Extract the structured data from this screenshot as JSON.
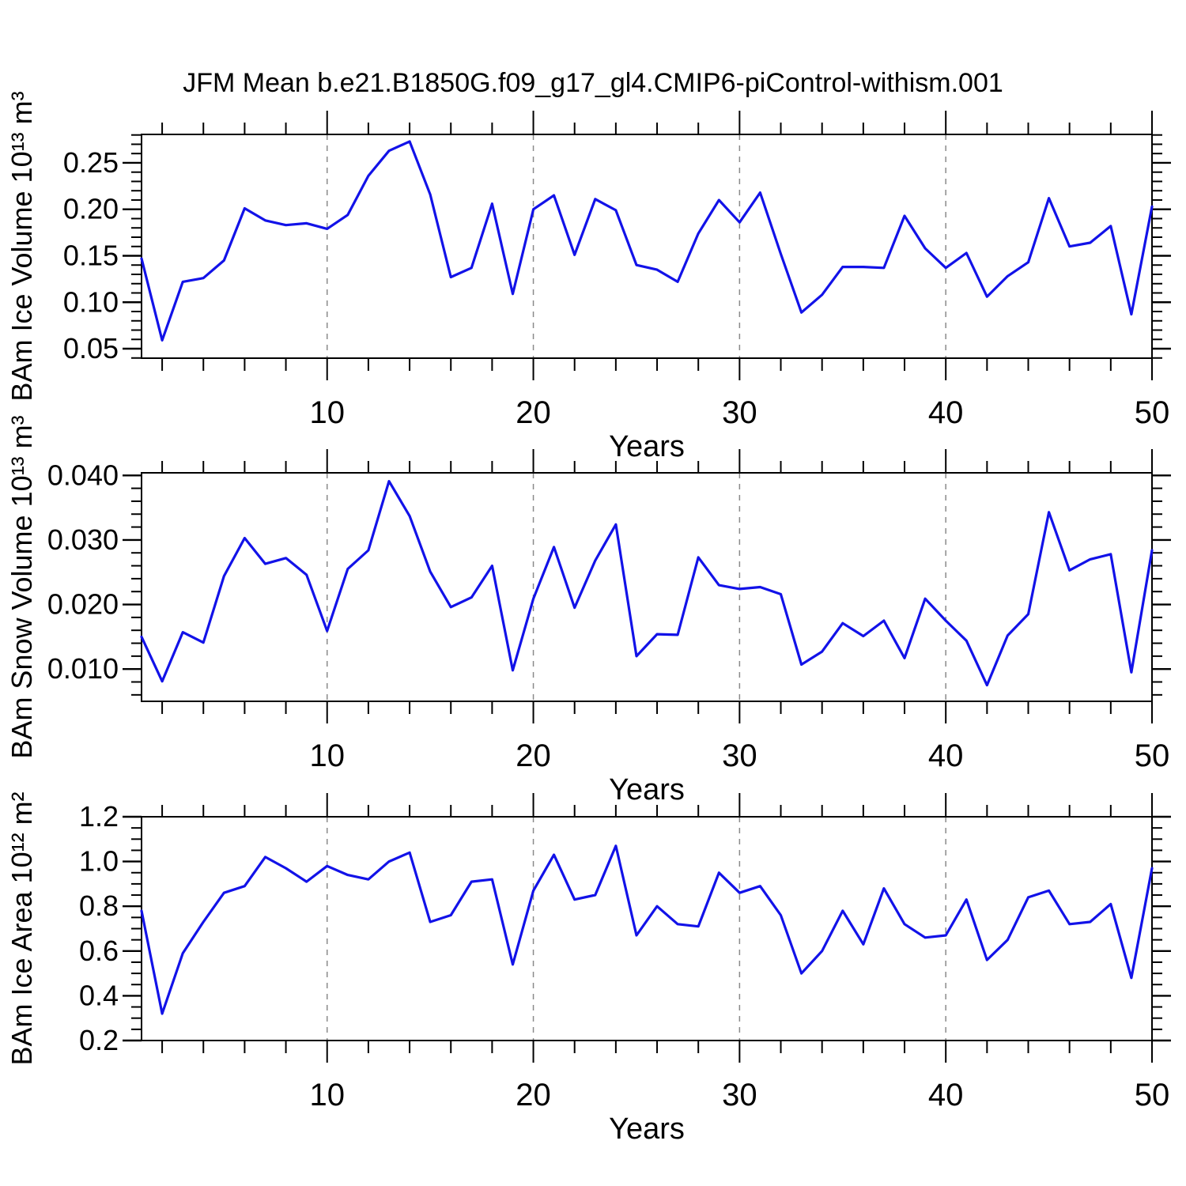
{
  "title": "JFM Mean b.e21.B1850G.f09_g17_gl4.CMIP6-piControl-withism.001",
  "colors": {
    "line": "#1212e8",
    "grid": "#8a8a8a",
    "axis": "#000000",
    "text": "#000000"
  },
  "chart_data": [
    {
      "type": "line",
      "ylabel": "BAm Ice Volume 10¹³ m³",
      "xlabel": "Years",
      "xlim": [
        1,
        50
      ],
      "ylim": [
        0.0398,
        0.2806
      ],
      "x_major_ticks": [
        {
          "v": 10,
          "label": "10"
        },
        {
          "v": 20,
          "label": "20"
        },
        {
          "v": 30,
          "label": "30"
        },
        {
          "v": 40,
          "label": "40"
        },
        {
          "v": 50,
          "label": "50"
        }
      ],
      "x_minor_step": 2,
      "gridlines_x": [
        10,
        20,
        30,
        40
      ],
      "y_major_ticks": [
        {
          "v": 0.05,
          "label": "0.05"
        },
        {
          "v": 0.1,
          "label": "0.10"
        },
        {
          "v": 0.15,
          "label": "0.15"
        },
        {
          "v": 0.2,
          "label": "0.20"
        },
        {
          "v": 0.25,
          "label": "0.25"
        }
      ],
      "y_minor_step": 0.01,
      "x": [
        1,
        2,
        3,
        4,
        5,
        6,
        7,
        8,
        9,
        10,
        11,
        12,
        13,
        14,
        15,
        16,
        17,
        18,
        19,
        20,
        21,
        22,
        23,
        24,
        25,
        26,
        27,
        28,
        29,
        30,
        31,
        32,
        33,
        34,
        35,
        36,
        37,
        38,
        39,
        40,
        41,
        42,
        43,
        44,
        45,
        46,
        47,
        48,
        49,
        50
      ],
      "values": [
        0.147,
        0.059,
        0.122,
        0.126,
        0.145,
        0.201,
        0.188,
        0.183,
        0.185,
        0.179,
        0.194,
        0.236,
        0.263,
        0.273,
        0.216,
        0.127,
        0.137,
        0.206,
        0.109,
        0.2,
        0.215,
        0.151,
        0.211,
        0.199,
        0.14,
        0.135,
        0.122,
        0.174,
        0.21,
        0.186,
        0.218,
        0.152,
        0.089,
        0.108,
        0.138,
        0.138,
        0.137,
        0.193,
        0.158,
        0.137,
        0.153,
        0.106,
        0.128,
        0.143,
        0.212,
        0.16,
        0.164,
        0.182,
        0.087,
        0.203
      ]
    },
    {
      "type": "line",
      "ylabel": "BAm Snow Volume 10¹³ m³",
      "xlabel": "Years",
      "xlim": [
        1,
        50
      ],
      "ylim": [
        0.005,
        0.0404
      ],
      "x_major_ticks": [
        {
          "v": 10,
          "label": "10"
        },
        {
          "v": 20,
          "label": "20"
        },
        {
          "v": 30,
          "label": "30"
        },
        {
          "v": 40,
          "label": "40"
        },
        {
          "v": 50,
          "label": "50"
        }
      ],
      "x_minor_step": 2,
      "gridlines_x": [
        10,
        20,
        30,
        40
      ],
      "y_major_ticks": [
        {
          "v": 0.01,
          "label": "0.010"
        },
        {
          "v": 0.02,
          "label": "0.020"
        },
        {
          "v": 0.03,
          "label": "0.030"
        },
        {
          "v": 0.04,
          "label": "0.040"
        }
      ],
      "y_minor_step": 0.002,
      "x": [
        1,
        2,
        3,
        4,
        5,
        6,
        7,
        8,
        9,
        10,
        11,
        12,
        13,
        14,
        15,
        16,
        17,
        18,
        19,
        20,
        21,
        22,
        23,
        24,
        25,
        26,
        27,
        28,
        29,
        30,
        31,
        32,
        33,
        34,
        35,
        36,
        37,
        38,
        39,
        40,
        41,
        42,
        43,
        44,
        45,
        46,
        47,
        48,
        49,
        50
      ],
      "values": [
        0.015,
        0.0081,
        0.0157,
        0.0141,
        0.0244,
        0.0303,
        0.0263,
        0.0272,
        0.0246,
        0.0159,
        0.0255,
        0.0284,
        0.0391,
        0.0337,
        0.0251,
        0.0196,
        0.0211,
        0.026,
        0.0098,
        0.0209,
        0.0289,
        0.0195,
        0.0268,
        0.0324,
        0.012,
        0.0154,
        0.0153,
        0.0273,
        0.023,
        0.0224,
        0.0227,
        0.0216,
        0.0107,
        0.0127,
        0.0171,
        0.0151,
        0.0175,
        0.0117,
        0.0209,
        0.0175,
        0.0144,
        0.0075,
        0.0152,
        0.0185,
        0.0343,
        0.0253,
        0.027,
        0.0278,
        0.0095,
        0.0284
      ]
    },
    {
      "type": "line",
      "ylabel": "BAm Ice Area 10¹² m²",
      "xlabel": "Years",
      "xlim": [
        1,
        50
      ],
      "ylim": [
        0.2,
        1.2
      ],
      "x_major_ticks": [
        {
          "v": 10,
          "label": "10"
        },
        {
          "v": 20,
          "label": "20"
        },
        {
          "v": 30,
          "label": "30"
        },
        {
          "v": 40,
          "label": "40"
        },
        {
          "v": 50,
          "label": "50"
        }
      ],
      "x_minor_step": 2,
      "gridlines_x": [
        10,
        20,
        30,
        40
      ],
      "y_major_ticks": [
        {
          "v": 0.2,
          "label": "0.2"
        },
        {
          "v": 0.4,
          "label": "0.4"
        },
        {
          "v": 0.6,
          "label": "0.6"
        },
        {
          "v": 0.8,
          "label": "0.8"
        },
        {
          "v": 1.0,
          "label": "1.0"
        },
        {
          "v": 1.2,
          "label": "1.2"
        }
      ],
      "y_minor_step": 0.05,
      "x": [
        1,
        2,
        3,
        4,
        5,
        6,
        7,
        8,
        9,
        10,
        11,
        12,
        13,
        14,
        15,
        16,
        17,
        18,
        19,
        20,
        21,
        22,
        23,
        24,
        25,
        26,
        27,
        28,
        29,
        30,
        31,
        32,
        33,
        34,
        35,
        36,
        37,
        38,
        39,
        40,
        41,
        42,
        43,
        44,
        45,
        46,
        47,
        48,
        49,
        50
      ],
      "values": [
        0.78,
        0.32,
        0.59,
        0.73,
        0.86,
        0.89,
        1.02,
        0.97,
        0.91,
        0.98,
        0.94,
        0.92,
        1.0,
        1.04,
        0.73,
        0.76,
        0.91,
        0.92,
        0.54,
        0.87,
        1.03,
        0.83,
        0.85,
        1.07,
        0.67,
        0.8,
        0.72,
        0.71,
        0.95,
        0.86,
        0.89,
        0.76,
        0.5,
        0.6,
        0.78,
        0.63,
        0.88,
        0.72,
        0.66,
        0.67,
        0.83,
        0.56,
        0.65,
        0.84,
        0.87,
        0.72,
        0.73,
        0.81,
        0.48,
        0.97
      ]
    }
  ]
}
